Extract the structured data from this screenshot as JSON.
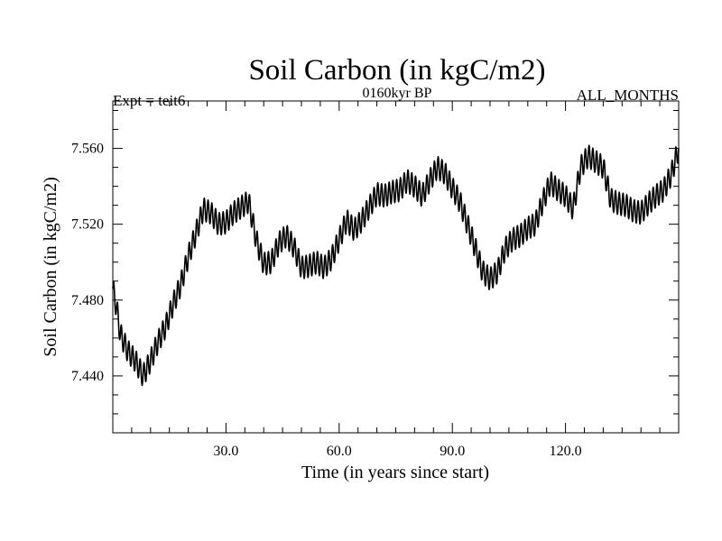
{
  "chart_data": {
    "type": "line",
    "title": "Soil Carbon (in kgC/m2)",
    "subtitle": "0160kyr BP",
    "left_annotation": "Expt = teit6",
    "right_annotation": "ALL_MONTHS",
    "xlabel": "Time (in years since start)",
    "ylabel": "Soil Carbon (in kgC/m2)",
    "xlim": [
      0,
      150
    ],
    "ylim": [
      7.41,
      7.585
    ],
    "x_ticks": [
      30,
      60,
      90,
      120
    ],
    "x_tick_labels": [
      "30.0",
      "60.0",
      "90.0",
      "120.0"
    ],
    "y_ticks": [
      7.44,
      7.48,
      7.52,
      7.56
    ],
    "y_tick_labels": [
      "7.440",
      "7.480",
      "7.520",
      "7.560"
    ],
    "seasonal_amplitude": 0.006,
    "series": [
      {
        "name": "Soil Carbon",
        "color": "#000000",
        "x": [
          0,
          1,
          2,
          4,
          6,
          8,
          10,
          12,
          14,
          16,
          18,
          20,
          22,
          24,
          26,
          28,
          30,
          32,
          34,
          36,
          38,
          40,
          42,
          44,
          46,
          48,
          50,
          52,
          54,
          56,
          58,
          60,
          62,
          64,
          66,
          68,
          70,
          72,
          74,
          76,
          78,
          80,
          82,
          84,
          86,
          88,
          90,
          92,
          94,
          96,
          98,
          100,
          102,
          104,
          106,
          108,
          110,
          112,
          114,
          116,
          118,
          120,
          122,
          124,
          126,
          128,
          130,
          132,
          134,
          136,
          138,
          140,
          142,
          144,
          146,
          148,
          150
        ],
        "y": [
          7.486,
          7.476,
          7.462,
          7.453,
          7.448,
          7.44,
          7.448,
          7.458,
          7.466,
          7.478,
          7.488,
          7.503,
          7.515,
          7.528,
          7.526,
          7.52,
          7.521,
          7.526,
          7.529,
          7.532,
          7.512,
          7.499,
          7.5,
          7.51,
          7.514,
          7.508,
          7.497,
          7.498,
          7.5,
          7.497,
          7.502,
          7.512,
          7.522,
          7.517,
          7.522,
          7.529,
          7.536,
          7.535,
          7.537,
          7.538,
          7.543,
          7.54,
          7.535,
          7.543,
          7.55,
          7.547,
          7.539,
          7.532,
          7.52,
          7.508,
          7.495,
          7.491,
          7.495,
          7.507,
          7.512,
          7.514,
          7.518,
          7.52,
          7.532,
          7.542,
          7.538,
          7.535,
          7.528,
          7.55,
          7.556,
          7.553,
          7.55,
          7.533,
          7.531,
          7.53,
          7.527,
          7.526,
          7.531,
          7.535,
          7.538,
          7.546,
          7.56
        ]
      }
    ]
  }
}
